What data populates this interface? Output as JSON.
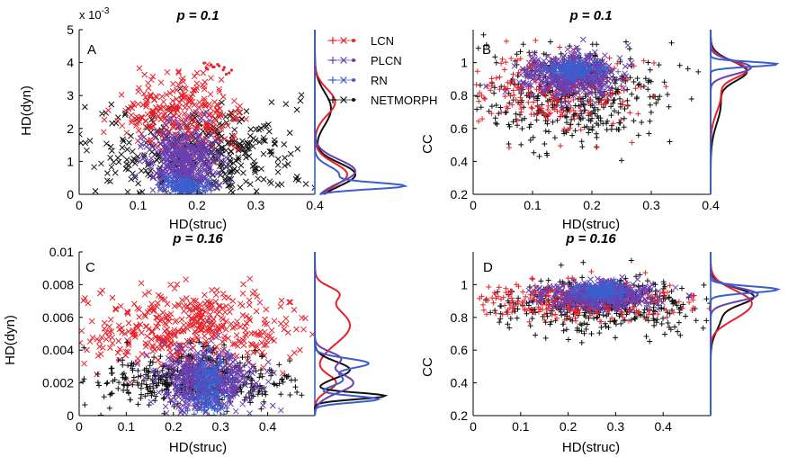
{
  "colors": {
    "LCN": "#e8202a",
    "PLCN": "#6a3fb0",
    "RN": "#3a5fcd",
    "NETMORPH": "#111111"
  },
  "legend": {
    "entries": [
      {
        "name": "LCN",
        "label": "LCN"
      },
      {
        "name": "PLCN",
        "label": "PLCN"
      },
      {
        "name": "RN",
        "label": "RN"
      },
      {
        "name": "NETMORPH",
        "label": "NETMORPH"
      }
    ]
  },
  "chart_data": [
    {
      "id": "A",
      "panel_label": "A",
      "type": "scatter",
      "title": "p = 0.1",
      "xlabel": "HD(struc)",
      "ylabel": "HD(dyn)",
      "y_exponent": "x 10",
      "y_exponent_power": "-3",
      "xlim": [
        0,
        0.4
      ],
      "ylim": [
        0,
        5
      ],
      "xticks": [
        0,
        0.1,
        0.2,
        0.3,
        0.4
      ],
      "xtick_labels": [
        "0",
        "0.1",
        "0.2",
        "0.3",
        "0.4"
      ],
      "yticks": [
        0,
        1,
        2,
        3,
        4,
        5
      ],
      "ytick_labels": [
        "0",
        "1",
        "2",
        "3",
        "4",
        "5"
      ],
      "series": [
        {
          "name": "NETMORPH",
          "marker": "x",
          "cx": 0.2,
          "cy": 1.2,
          "sx": 0.085,
          "sy": 0.75,
          "count": 430
        },
        {
          "name": "LCN",
          "marker": "x",
          "cx": 0.17,
          "cy": 2.4,
          "sx": 0.05,
          "sy": 0.55,
          "count": 280
        },
        {
          "name": "PLCN",
          "marker": "x",
          "cx": 0.18,
          "cy": 1.0,
          "sx": 0.03,
          "sy": 0.55,
          "count": 420
        },
        {
          "name": "RN",
          "marker": "+",
          "cx": 0.18,
          "cy": 0.25,
          "sx": 0.02,
          "sy": 0.15,
          "count": 150
        }
      ],
      "marginal_ylim": [
        0,
        5
      ],
      "marginal_peaks": [
        {
          "name": "NETMORPH",
          "peaks": [
            [
              0.6,
              0.35,
              0.5
            ],
            [
              2.6,
              0.5,
              0.2
            ]
          ]
        },
        {
          "name": "LCN",
          "peaks": [
            [
              0.6,
              0.35,
              0.4
            ],
            [
              2.8,
              0.4,
              0.25
            ]
          ]
        },
        {
          "name": "PLCN",
          "peaks": [
            [
              0.7,
              0.35,
              0.5
            ]
          ]
        },
        {
          "name": "RN",
          "peaks": [
            [
              0.25,
              0.1,
              1.0
            ],
            [
              0.6,
              0.25,
              0.3
            ]
          ]
        }
      ]
    },
    {
      "id": "B",
      "panel_label": "B",
      "type": "scatter",
      "title": "p = 0.1",
      "xlabel": "HD(struc)",
      "ylabel": "CC",
      "xlim": [
        0,
        0.4
      ],
      "ylim": [
        0.2,
        1.2
      ],
      "xticks": [
        0,
        0.1,
        0.2,
        0.3,
        0.4
      ],
      "xtick_labels": [
        "0",
        "0.1",
        "0.2",
        "0.3",
        "0.4"
      ],
      "yticks": [
        0.2,
        0.4,
        0.6,
        0.8,
        1.0
      ],
      "ytick_labels": [
        "0.2",
        "0.4",
        "0.6",
        "0.8",
        "1"
      ],
      "series": [
        {
          "name": "NETMORPH",
          "marker": "+",
          "cx": 0.17,
          "cy": 0.8,
          "sx": 0.08,
          "sy": 0.15,
          "count": 430
        },
        {
          "name": "LCN",
          "marker": "+",
          "cx": 0.14,
          "cy": 0.85,
          "sx": 0.07,
          "sy": 0.12,
          "count": 280
        },
        {
          "name": "PLCN",
          "marker": "x",
          "cx": 0.17,
          "cy": 0.92,
          "sx": 0.04,
          "sy": 0.07,
          "count": 400
        },
        {
          "name": "RN",
          "marker": "+",
          "cx": 0.17,
          "cy": 0.96,
          "sx": 0.025,
          "sy": 0.03,
          "count": 150
        }
      ],
      "marginal_ylim": [
        0.2,
        1.2
      ],
      "marginal_peaks": [
        {
          "name": "NETMORPH",
          "peaks": [
            [
              0.95,
              0.06,
              0.5
            ],
            [
              0.75,
              0.12,
              0.15
            ]
          ]
        },
        {
          "name": "LCN",
          "peaks": [
            [
              0.96,
              0.05,
              0.5
            ],
            [
              0.8,
              0.1,
              0.15
            ]
          ]
        },
        {
          "name": "PLCN",
          "peaks": [
            [
              0.97,
              0.04,
              0.6
            ]
          ]
        },
        {
          "name": "RN",
          "peaks": [
            [
              0.99,
              0.015,
              1.0
            ]
          ]
        }
      ]
    },
    {
      "id": "C",
      "panel_label": "C",
      "type": "scatter",
      "title": "p = 0.16",
      "xlabel": "HD(struc)",
      "ylabel": "HD(dyn)",
      "xlim": [
        0,
        0.5
      ],
      "ylim": [
        0,
        0.01
      ],
      "xticks": [
        0,
        0.1,
        0.2,
        0.3,
        0.4
      ],
      "xtick_labels": [
        "0",
        "0.1",
        "0.2",
        "0.3",
        "0.4"
      ],
      "yticks": [
        0,
        0.002,
        0.004,
        0.006,
        0.008,
        0.01
      ],
      "ytick_labels": [
        "0",
        "0.002",
        "0.004",
        "0.006",
        "0.008",
        "0.01"
      ],
      "series": [
        {
          "name": "LCN",
          "marker": "x",
          "cx": 0.24,
          "cy": 0.0052,
          "sx": 0.11,
          "sy": 0.0012,
          "count": 460
        },
        {
          "name": "NETMORPH",
          "marker": "+",
          "cx": 0.24,
          "cy": 0.0022,
          "sx": 0.1,
          "sy": 0.0008,
          "count": 460
        },
        {
          "name": "PLCN",
          "marker": "x",
          "cx": 0.27,
          "cy": 0.0022,
          "sx": 0.05,
          "sy": 0.0009,
          "count": 430
        },
        {
          "name": "RN",
          "marker": "+",
          "cx": 0.275,
          "cy": 0.0018,
          "sx": 0.02,
          "sy": 0.0011,
          "count": 170
        }
      ],
      "marginal_ylim": [
        0,
        0.01
      ],
      "marginal_peaks": [
        {
          "name": "LCN",
          "peaks": [
            [
              0.0055,
              0.0011,
              0.5
            ],
            [
              0.0075,
              0.0004,
              0.25
            ],
            [
              0.002,
              0.0005,
              0.3
            ]
          ]
        },
        {
          "name": "NETMORPH",
          "peaks": [
            [
              0.0012,
              0.0002,
              1.0
            ],
            [
              0.0028,
              0.0005,
              0.5
            ]
          ]
        },
        {
          "name": "PLCN",
          "peaks": [
            [
              0.002,
              0.0006,
              0.55
            ],
            [
              0.0035,
              0.0004,
              0.35
            ]
          ]
        },
        {
          "name": "RN",
          "peaks": [
            [
              0.001,
              0.0002,
              0.9
            ],
            [
              0.0032,
              0.0003,
              0.75
            ],
            [
              0.0022,
              0.0004,
              0.4
            ]
          ]
        }
      ]
    },
    {
      "id": "D",
      "panel_label": "D",
      "type": "scatter",
      "title": "p = 0.16",
      "xlabel": "HD(struc)",
      "ylabel": "CC",
      "xlim": [
        0,
        0.5
      ],
      "ylim": [
        0.2,
        1.2
      ],
      "xticks": [
        0,
        0.1,
        0.2,
        0.3,
        0.4
      ],
      "xtick_labels": [
        "0",
        "0.1",
        "0.2",
        "0.3",
        "0.4"
      ],
      "yticks": [
        0.2,
        0.4,
        0.6,
        0.8,
        1.0
      ],
      "ytick_labels": [
        "0.2",
        "0.4",
        "0.6",
        "0.8",
        "1"
      ],
      "series": [
        {
          "name": "NETMORPH",
          "marker": "+",
          "cx": 0.27,
          "cy": 0.88,
          "sx": 0.1,
          "sy": 0.08,
          "count": 430
        },
        {
          "name": "LCN",
          "marker": "+",
          "cx": 0.22,
          "cy": 0.9,
          "sx": 0.12,
          "sy": 0.06,
          "count": 320
        },
        {
          "name": "PLCN",
          "marker": "x",
          "cx": 0.27,
          "cy": 0.93,
          "sx": 0.06,
          "sy": 0.04,
          "count": 420
        },
        {
          "name": "RN",
          "marker": "+",
          "cx": 0.27,
          "cy": 0.96,
          "sx": 0.025,
          "sy": 0.025,
          "count": 160
        }
      ],
      "marginal_ylim": [
        0.2,
        1.2
      ],
      "marginal_peaks": [
        {
          "name": "NETMORPH",
          "peaks": [
            [
              0.93,
              0.05,
              0.6
            ],
            [
              0.8,
              0.08,
              0.15
            ]
          ]
        },
        {
          "name": "LCN",
          "peaks": [
            [
              0.9,
              0.07,
              0.55
            ],
            [
              0.8,
              0.06,
              0.2
            ]
          ]
        },
        {
          "name": "PLCN",
          "peaks": [
            [
              0.94,
              0.04,
              0.7
            ]
          ]
        },
        {
          "name": "RN",
          "peaks": [
            [
              0.97,
              0.02,
              1.0
            ]
          ]
        }
      ]
    }
  ]
}
